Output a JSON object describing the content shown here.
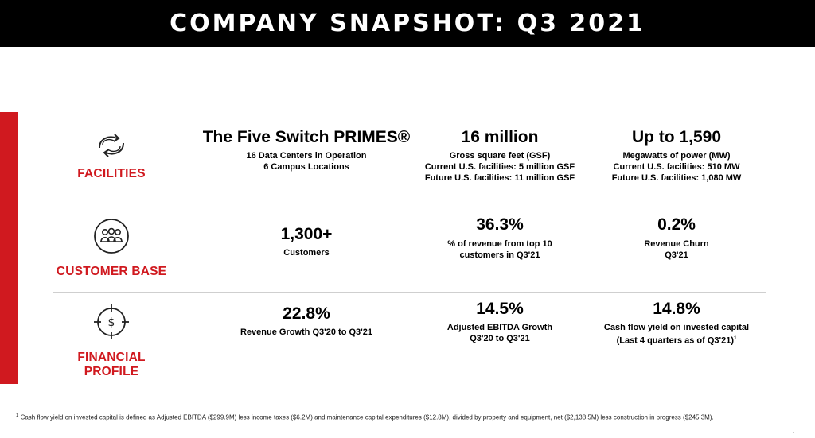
{
  "header": {
    "title": "COMPANY SNAPSHOT: Q3 2021"
  },
  "sections": [
    {
      "label": "FACILITIES",
      "icon": "cycle-arrows-icon",
      "cols": [
        {
          "headline": "The Five Switch PRIMES®",
          "lines": [
            "16 Data Centers in Operation",
            "6 Campus Locations"
          ]
        },
        {
          "headline": "16 million",
          "lines": [
            "Gross square feet (GSF)",
            "Current U.S. facilities: 5 million GSF",
            "Future U.S. facilities: 11 million GSF"
          ]
        },
        {
          "headline": "Up to 1,590",
          "lines": [
            "Megawatts of power (MW)",
            "Current U.S. facilities: 510 MW",
            "Future U.S. facilities: 1,080 MW"
          ]
        }
      ]
    },
    {
      "label": "CUSTOMER BASE",
      "icon": "people-group-icon",
      "cols": [
        {
          "headline": "1,300+",
          "lines": [
            "Customers"
          ]
        },
        {
          "headline": "36.3%",
          "lines": [
            "% of revenue from top 10",
            "customers in Q3'21"
          ]
        },
        {
          "headline": "0.2%",
          "lines": [
            "Revenue Churn",
            "Q3'21"
          ]
        }
      ]
    },
    {
      "label": "FINANCIAL PROFILE",
      "icon": "dollar-target-icon",
      "cols": [
        {
          "headline": "22.8%",
          "lines": [
            "Revenue Growth Q3'20 to Q3'21"
          ]
        },
        {
          "headline": "14.5%",
          "lines": [
            "Adjusted EBITDA Growth",
            "Q3'20 to Q3'21"
          ]
        },
        {
          "headline": "14.8%",
          "lines": [
            "Cash flow yield on invested capital",
            "(Last 4 quarters as of Q3'21)"
          ],
          "footnote_marker": "1"
        }
      ]
    }
  ],
  "footnote": {
    "marker": "1",
    "text": "Cash flow yield on invested capital is defined as Adjusted EBITDA ($299.9M) less income taxes ($6.2M) and maintenance capital expenditures ($12.8M), divided by property and equipment, net ($2,138.5M) less construction in progress ($245.3M)."
  },
  "colors": {
    "accent": "#d0191f",
    "header_bg": "#000000"
  }
}
